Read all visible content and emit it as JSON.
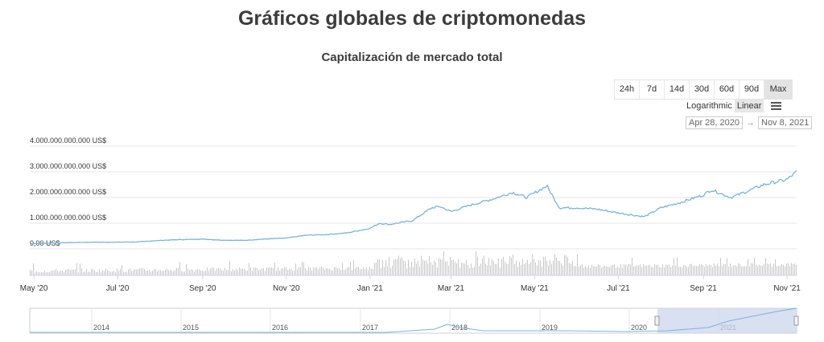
{
  "page": {
    "title": "Gráficos globales de criptomonedas"
  },
  "controls": {
    "ranges": [
      "24h",
      "7d",
      "14d",
      "30d",
      "60d",
      "90d",
      "Max"
    ],
    "active_range": "Max",
    "scales": [
      "Logarithmic",
      "Linear"
    ],
    "active_scale": "Linear",
    "menu_icon": "hamburger-menu-icon",
    "date_from": "Apr 28, 2020",
    "date_arrow": "→",
    "date_to": "Nov 8, 2021"
  },
  "colors": {
    "line": "#7ab3de",
    "volume": "#c8c8c8",
    "navigator_mask": "#ccd6ee",
    "grid": "#e6e6e6"
  },
  "chart_data": {
    "type": "line",
    "title": "Capitalización de mercado total",
    "y_tick_labels": [
      "0,00 US$",
      "1.000.000.000.000 US$",
      "2.000.000.000.000 US$",
      "3.000.000.000.000 US$",
      "4.000.000.000.000 US$"
    ],
    "y_ticks": [
      0,
      1000000000000,
      2000000000000,
      3000000000000,
      4000000000000
    ],
    "ylim": [
      0,
      4000000000000
    ],
    "x_range": [
      "2020-04-28",
      "2021-11-08"
    ],
    "x_tick_labels": [
      "May '20",
      "Jul '20",
      "Sep '20",
      "Nov '20",
      "Jan '21",
      "Mar '21",
      "May '21",
      "Jul '21",
      "Sep '21",
      "Nov '21"
    ],
    "x_tick_dates": [
      "2020-05-01",
      "2020-07-01",
      "2020-09-01",
      "2020-11-01",
      "2021-01-01",
      "2021-03-01",
      "2021-05-01",
      "2021-07-01",
      "2021-09-01",
      "2021-11-01"
    ],
    "grid": true,
    "series": [
      {
        "x": [
          "2020-04-28",
          "2020-05-15",
          "2020-06-01",
          "2020-06-15",
          "2020-07-01",
          "2020-07-15",
          "2020-08-01",
          "2020-08-15",
          "2020-09-01",
          "2020-09-15",
          "2020-10-01",
          "2020-10-15",
          "2020-11-01",
          "2020-11-15",
          "2020-12-01",
          "2020-12-15",
          "2021-01-01",
          "2021-01-08",
          "2021-01-15",
          "2021-02-01",
          "2021-02-15",
          "2021-02-21",
          "2021-03-01",
          "2021-03-15",
          "2021-04-01",
          "2021-04-15",
          "2021-04-25",
          "2021-05-10",
          "2021-05-19",
          "2021-06-01",
          "2021-06-15",
          "2021-07-01",
          "2021-07-20",
          "2021-08-01",
          "2021-08-15",
          "2021-09-01",
          "2021-09-07",
          "2021-09-21",
          "2021-10-01",
          "2021-10-15",
          "2021-11-01",
          "2021-11-08"
        ],
        "y": [
          200000000000,
          230000000000,
          250000000000,
          260000000000,
          260000000000,
          270000000000,
          330000000000,
          360000000000,
          380000000000,
          340000000000,
          330000000000,
          380000000000,
          420000000000,
          530000000000,
          560000000000,
          620000000000,
          800000000000,
          1000000000000,
          950000000000,
          1100000000000,
          1600000000000,
          1650000000000,
          1450000000000,
          1700000000000,
          1950000000000,
          2200000000000,
          2000000000000,
          2450000000000,
          1600000000000,
          1600000000000,
          1550000000000,
          1400000000000,
          1250000000000,
          1600000000000,
          1800000000000,
          2100000000000,
          2300000000000,
          2000000000000,
          2200000000000,
          2500000000000,
          2700000000000,
          3000000000000
        ]
      }
    ],
    "navigator": {
      "x_tick_labels": [
        "2014",
        "2015",
        "2016",
        "2017",
        "2018",
        "2019",
        "2020",
        "2021"
      ],
      "selected_range": [
        "2020-04-28",
        "2021-11-08"
      ]
    }
  }
}
